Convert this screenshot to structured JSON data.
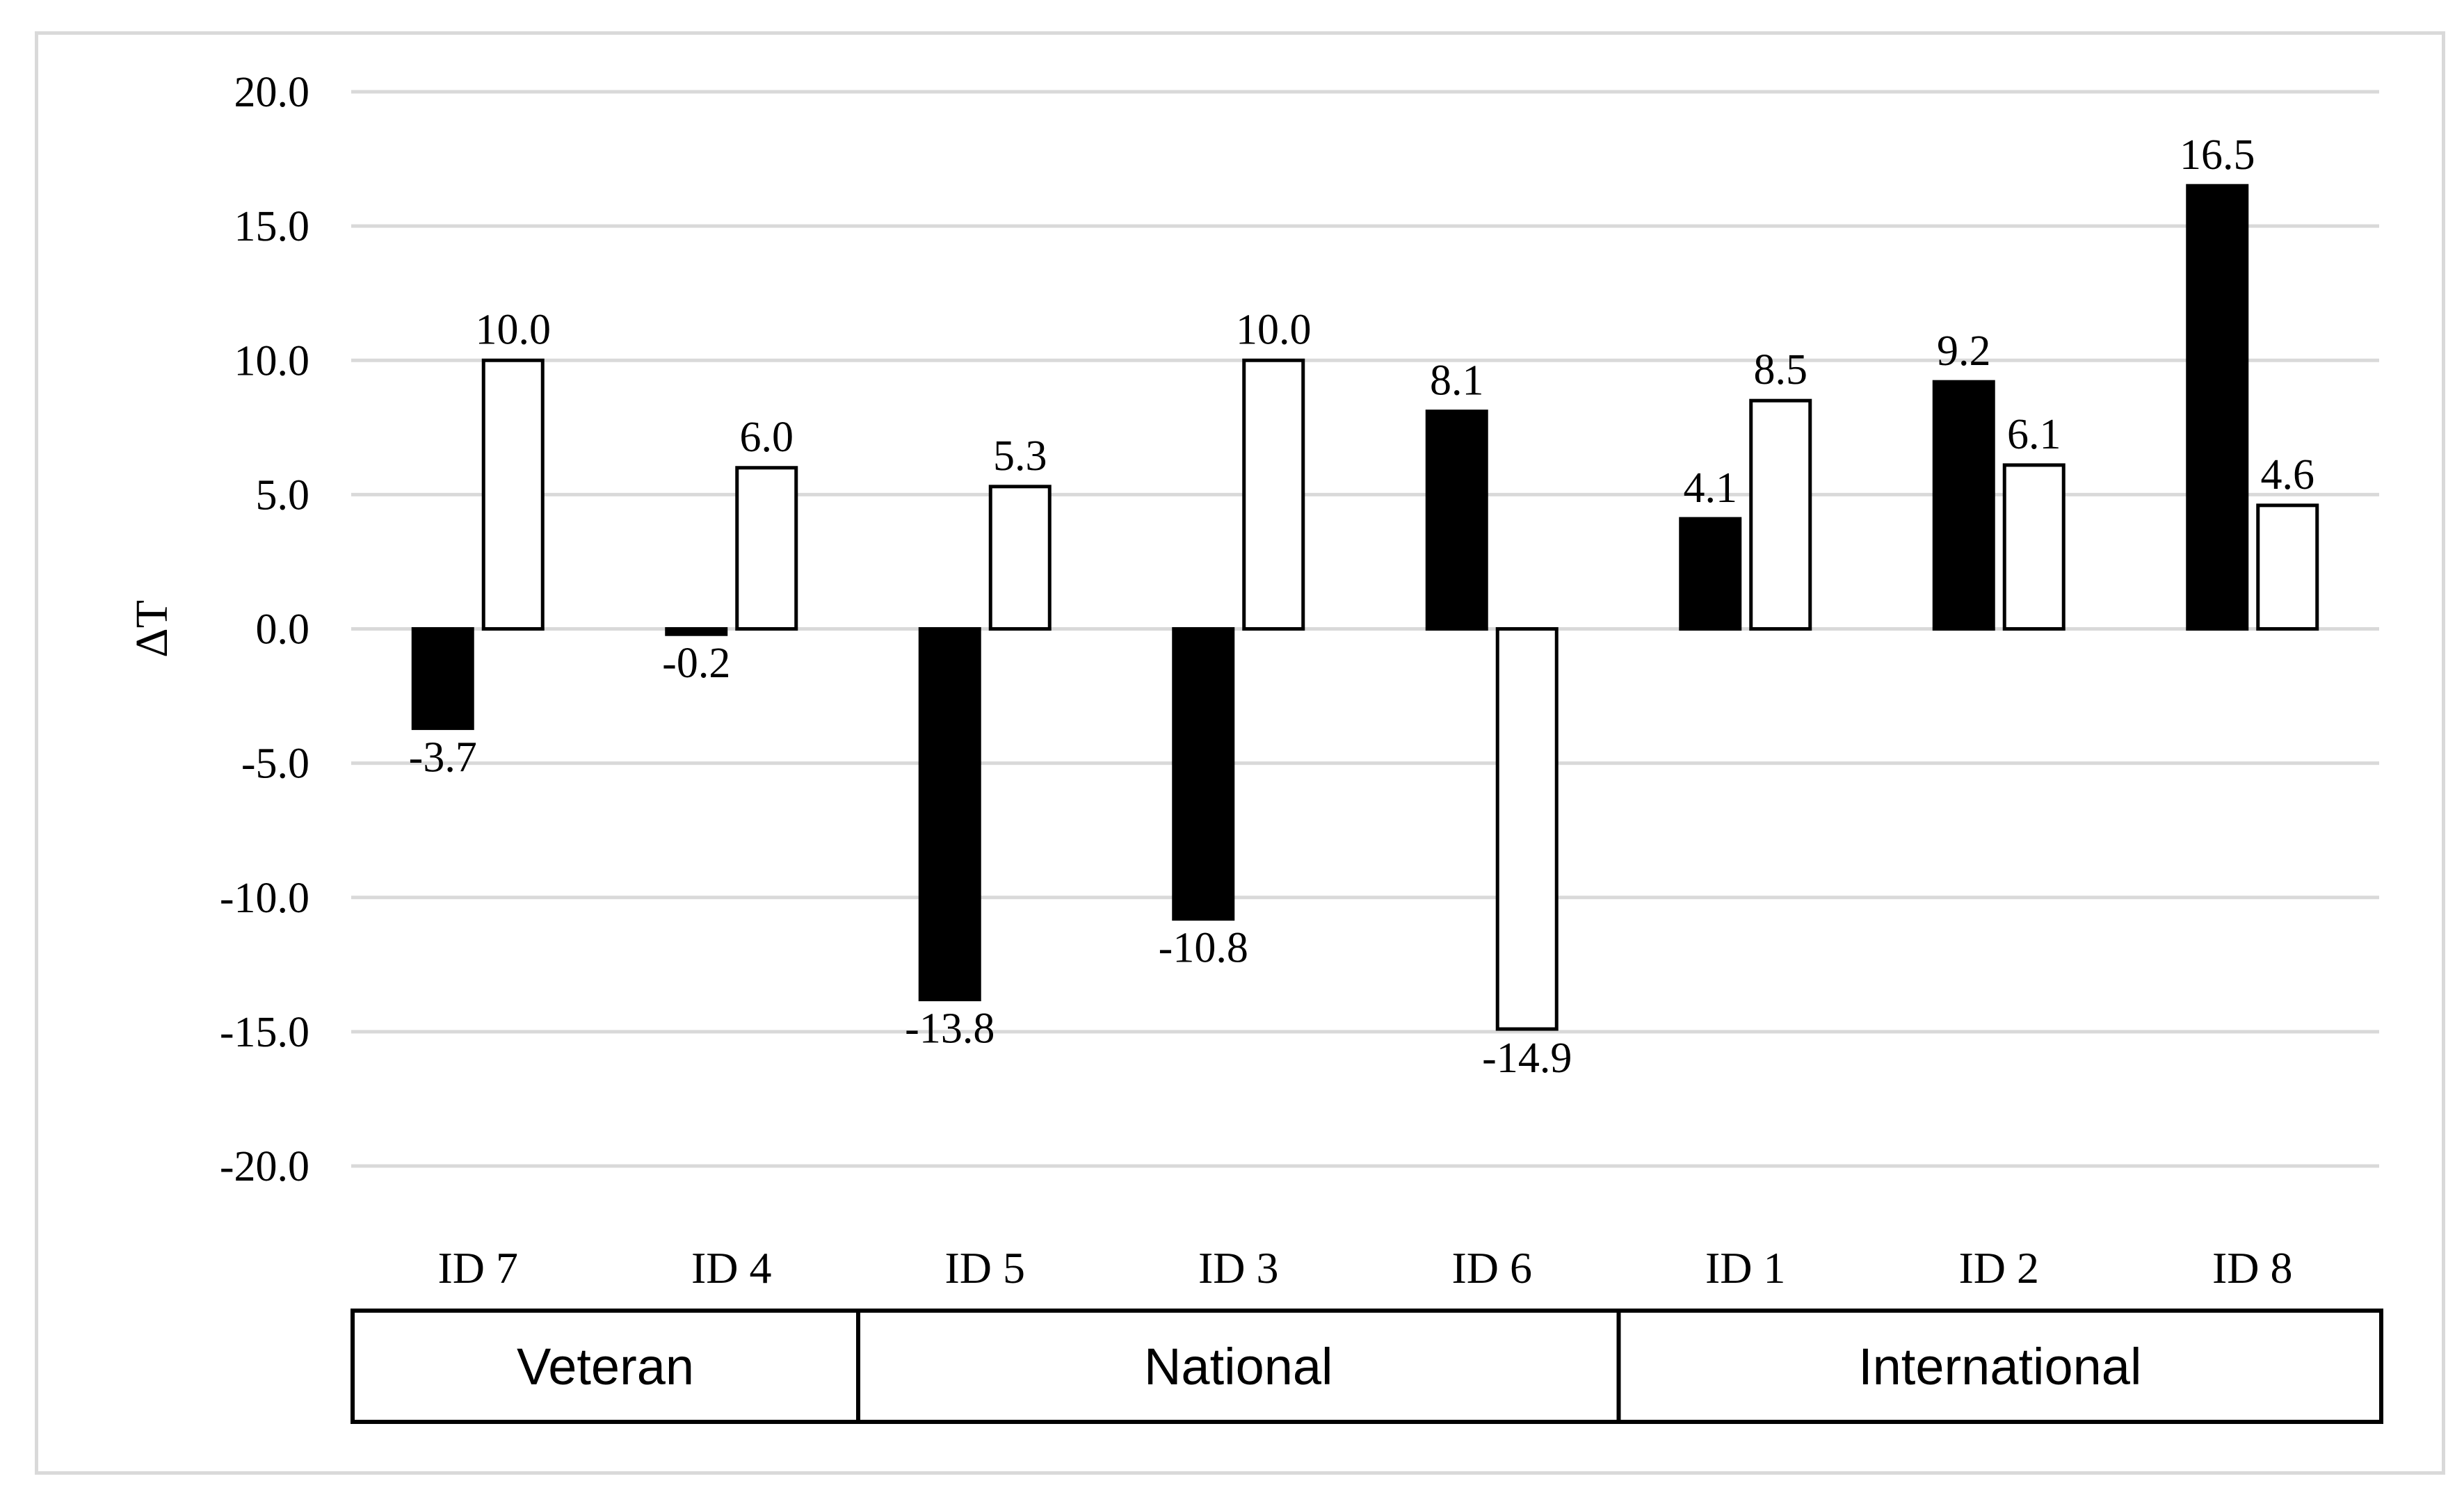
{
  "chart_data": {
    "type": "bar",
    "title": "",
    "xlabel": "",
    "ylabel": "ΔT",
    "ylim": [
      -20.0,
      20.0
    ],
    "ytick_step": 5.0,
    "yticks": [
      "20.0",
      "15.0",
      "10.0",
      "5.0",
      "0.0",
      "-5.0",
      "-10.0",
      "-15.0",
      "-20.0"
    ],
    "categories": [
      "ID 7",
      "ID 4",
      "ID 5",
      "ID 3",
      "ID 6",
      "ID 1",
      "ID 2",
      "ID 8"
    ],
    "series": [
      {
        "name": "series-1",
        "fill": "#000000",
        "values": [
          -3.7,
          -0.2,
          -13.8,
          -10.8,
          8.1,
          4.1,
          9.2,
          16.5
        ],
        "labels": [
          "-3.7",
          "-0.2",
          "-13.8",
          "-10.8",
          "8.1",
          "4.1",
          "9.2",
          "16.5"
        ]
      },
      {
        "name": "series-2",
        "fill": "#ffffff",
        "values": [
          10.0,
          6.0,
          5.3,
          10.0,
          -14.9,
          8.5,
          6.1,
          4.6
        ],
        "labels": [
          "10.0",
          "6.0",
          "5.3",
          "10.0",
          "-14.9",
          "8.5",
          "6.1",
          "4.6"
        ]
      }
    ],
    "groups": [
      {
        "label": "Veteran",
        "from": 0,
        "to": 1
      },
      {
        "label": "National",
        "from": 2,
        "to": 4
      },
      {
        "label": "International",
        "from": 5,
        "to": 7
      }
    ],
    "grid": true,
    "legend": "none"
  }
}
